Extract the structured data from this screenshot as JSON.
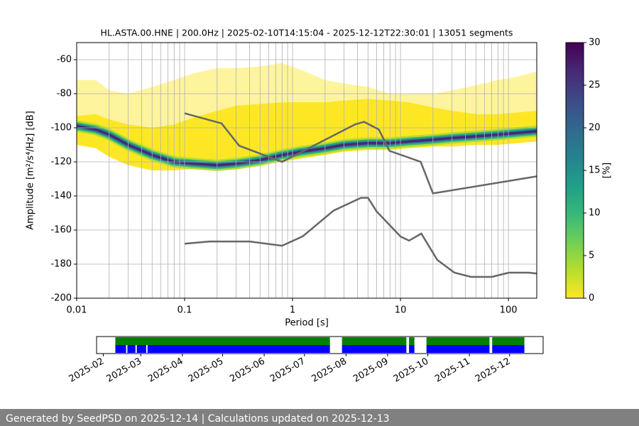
{
  "chart_data": [
    {
      "type": "ppsd",
      "title": "HL.ASTA.00.HNE | 200.0Hz | 2025-02-10T14:15:04 - 2025-12-12T22:30:01 | 13051 segments",
      "xlabel": "Period [s]",
      "ylabel": "Amplitude [m²/s⁴/Hz] [dB]",
      "xscale": "log",
      "xlim": [
        0.01,
        183
      ],
      "ylim": [
        -200,
        -50
      ],
      "xticks": [
        0.01,
        0.1,
        1,
        10,
        100
      ],
      "xminor": [
        0.02,
        0.03,
        0.04,
        0.05,
        0.06,
        0.07,
        0.08,
        0.09,
        0.2,
        0.3,
        0.4,
        0.5,
        0.6,
        0.7,
        0.8,
        0.9,
        2,
        3,
        4,
        5,
        6,
        7,
        8,
        9,
        20,
        30,
        40,
        50,
        60,
        70,
        80,
        90
      ],
      "yticks": [
        -200,
        -180,
        -160,
        -140,
        -120,
        -100,
        -80,
        -60
      ],
      "grid": true,
      "periods": [
        0.01,
        0.015,
        0.02,
        0.03,
        0.05,
        0.08,
        0.12,
        0.2,
        0.3,
        0.5,
        0.8,
        1.2,
        2,
        3,
        5,
        8,
        12,
        20,
        30,
        50,
        80,
        120,
        183
      ],
      "sparse_top": [
        -72,
        -72,
        -78,
        -80,
        -76,
        -72,
        -68,
        -65,
        -65,
        -64,
        -62,
        -66,
        -72,
        -74,
        -76,
        -80,
        -80,
        -80,
        -78,
        -75,
        -72,
        -70,
        -67
      ],
      "dense_top": [
        -93,
        -92,
        -95,
        -98,
        -100,
        -98,
        -94,
        -90,
        -87,
        -86,
        -85,
        -85,
        -85,
        -84,
        -83,
        -84,
        -85,
        -88,
        -90,
        -92,
        -92,
        -91,
        -90
      ],
      "dense_bottom": [
        -110,
        -112,
        -117,
        -122,
        -125,
        -125,
        -124,
        -124,
        -123,
        -122,
        -120,
        -118,
        -116,
        -114,
        -113,
        -113,
        -112,
        -111,
        -111,
        -110,
        -110,
        -109,
        -108
      ],
      "mode": [
        -99,
        -101,
        -104,
        -110,
        -116,
        -120,
        -121,
        -122,
        -121,
        -119,
        -116,
        -114,
        -112,
        -110,
        -109,
        -109,
        -108,
        -107,
        -106,
        -105,
        -104,
        -103,
        -102
      ],
      "noise_color": "#666666",
      "noise_models": [
        {
          "x": [
            0.1,
            0.22,
            0.32,
            0.8,
            3.8,
            4.6,
            6.3,
            7.9,
            15.4,
            20,
            183
          ],
          "y": [
            -91.5,
            -97.4,
            -110.5,
            -120,
            -98,
            -96.5,
            -101,
            -113.5,
            -120,
            -138.5,
            -128.5
          ]
        },
        {
          "x": [
            0.1,
            0.17,
            0.4,
            0.8,
            1.24,
            2.4,
            4.3,
            5,
            6,
            10,
            12,
            15.6,
            21.9,
            31.6,
            45,
            70,
            101,
            154,
            183
          ],
          "y": [
            -168,
            -166.7,
            -166.7,
            -169.2,
            -163.7,
            -148.6,
            -141.1,
            -141.1,
            -149,
            -163.8,
            -166.2,
            -162.1,
            -177.5,
            -185,
            -187.5,
            -187.5,
            -185,
            -185,
            -185.5
          ]
        }
      ],
      "colorbar": {
        "label": "[%]",
        "lim": [
          0,
          30
        ],
        "ticks": [
          0,
          5,
          10,
          15,
          20,
          25,
          30
        ],
        "colors": [
          "#fde725",
          "#b5de2b",
          "#6ece58",
          "#35b779",
          "#1f9e89",
          "#26828e",
          "#31688e",
          "#3e4989",
          "#482878",
          "#440154"
        ]
      }
    },
    {
      "type": "availability",
      "xlim": [
        "2025-01-27",
        "2025-12-26"
      ],
      "xticks": [
        "2025-02",
        "2025-03",
        "2025-04",
        "2025-05",
        "2025-06",
        "2025-07",
        "2025-08",
        "2025-09",
        "2025-10",
        "2025-11",
        "2025-12"
      ],
      "series": [
        {
          "color": "#008000",
          "intervals": [
            [
              "2025-02-10",
              "2025-07-20"
            ],
            [
              "2025-07-29",
              "2025-09-15"
            ],
            [
              "2025-09-17",
              "2025-09-21"
            ],
            [
              "2025-09-30",
              "2025-11-16"
            ],
            [
              "2025-11-18",
              "2025-12-12"
            ]
          ]
        },
        {
          "color": "#0000ff",
          "intervals": [
            [
              "2025-02-10",
              "2025-02-18"
            ],
            [
              "2025-02-19",
              "2025-02-25"
            ],
            [
              "2025-02-26",
              "2025-03-05"
            ],
            [
              "2025-03-06",
              "2025-07-20"
            ],
            [
              "2025-07-29",
              "2025-09-15"
            ],
            [
              "2025-09-17",
              "2025-09-21"
            ],
            [
              "2025-09-30",
              "2025-11-16"
            ],
            [
              "2025-11-18",
              "2025-12-12"
            ]
          ]
        }
      ]
    }
  ],
  "footer": "Generated by SeedPSD on 2025-12-14 | Calculations updated on 2025-12-13"
}
